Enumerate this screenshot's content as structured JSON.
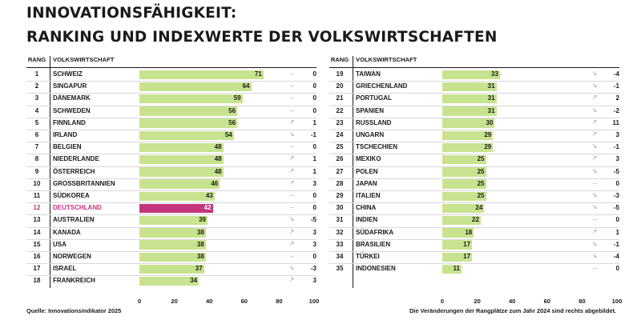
{
  "title_line1": "INNOVATIONSFÄHIGKEIT:",
  "title_line2": "RANKING UND INDEXWERTE DER VOLKSWIRTSCHAFTEN",
  "headers": {
    "rank": "RANG",
    "country": "VOLKSWIRTSCHAFT"
  },
  "source": "Quelle: Innovationsindikator 2025",
  "note": "Die Veränderungen der Rangplätze zum Jahr 2024 sind rechts abgebildet.",
  "colors": {
    "bar": "#c8e38f",
    "highlight": "#c4357e"
  },
  "chart_data": {
    "type": "bar",
    "orientation": "horizontal",
    "title": "INNOVATIONSFÄHIGKEIT: RANKING UND INDEXWERTE DER VOLKSWIRTSCHAFTEN",
    "xlim": [
      0,
      100
    ],
    "xticks": [
      "0",
      "20",
      "40",
      "60",
      "80",
      "100"
    ],
    "highlight": "DEUTSCHLAND",
    "rows": [
      {
        "rank": "1",
        "country": "SCHWEIZ",
        "value": 71,
        "change": "0"
      },
      {
        "rank": "2",
        "country": "SINGAPUR",
        "value": 64,
        "change": "0"
      },
      {
        "rank": "3",
        "country": "DÄNEMARK",
        "value": 59,
        "change": "0"
      },
      {
        "rank": "4",
        "country": "SCHWEDEN",
        "value": 56,
        "change": "0"
      },
      {
        "rank": "5",
        "country": "FINNLAND",
        "value": 56,
        "change": "1"
      },
      {
        "rank": "6",
        "country": "IRLAND",
        "value": 54,
        "change": "-1"
      },
      {
        "rank": "7",
        "country": "BELGIEN",
        "value": 48,
        "change": "0"
      },
      {
        "rank": "8",
        "country": "NIEDERLANDE",
        "value": 48,
        "change": "1"
      },
      {
        "rank": "9",
        "country": "ÖSTERREICH",
        "value": 48,
        "change": "1"
      },
      {
        "rank": "10",
        "country": "GROSSBRITANNIEN",
        "value": 46,
        "change": "3"
      },
      {
        "rank": "11",
        "country": "SÜDKOREA",
        "value": 43,
        "change": "0"
      },
      {
        "rank": "12",
        "country": "DEUTSCHLAND",
        "value": 42,
        "change": "0"
      },
      {
        "rank": "13",
        "country": "AUSTRALIEN",
        "value": 39,
        "change": "-5"
      },
      {
        "rank": "14",
        "country": "KANADA",
        "value": 38,
        "change": "3"
      },
      {
        "rank": "15",
        "country": "USA",
        "value": 38,
        "change": "3"
      },
      {
        "rank": "16",
        "country": "NORWEGEN",
        "value": 38,
        "change": "0"
      },
      {
        "rank": "17",
        "country": "ISRAEL",
        "value": 37,
        "change": "-3"
      },
      {
        "rank": "18",
        "country": "FRANKREICH",
        "value": 34,
        "change": "3"
      },
      {
        "rank": "19",
        "country": "TAIWAN",
        "value": 33,
        "change": "-4"
      },
      {
        "rank": "20",
        "country": "GRIECHENLAND",
        "value": 31,
        "change": "-1"
      },
      {
        "rank": "21",
        "country": "PORTUGAL",
        "value": 31,
        "change": "2"
      },
      {
        "rank": "22",
        "country": "SPANIEN",
        "value": 31,
        "change": "-2"
      },
      {
        "rank": "23",
        "country": "RUSSLAND",
        "value": 30,
        "change": "11"
      },
      {
        "rank": "24",
        "country": "UNGARN",
        "value": 29,
        "change": "3"
      },
      {
        "rank": "25",
        "country": "TSCHECHIEN",
        "value": 29,
        "change": "-1"
      },
      {
        "rank": "26",
        "country": "MEXIKO",
        "value": 25,
        "change": "3"
      },
      {
        "rank": "27",
        "country": "POLEN",
        "value": 25,
        "change": "-5"
      },
      {
        "rank": "28",
        "country": "JAPAN",
        "value": 25,
        "change": "0"
      },
      {
        "rank": "29",
        "country": "ITALIEN",
        "value": 25,
        "change": "-3"
      },
      {
        "rank": "30",
        "country": "CHINA",
        "value": 24,
        "change": "-5"
      },
      {
        "rank": "31",
        "country": "INDIEN",
        "value": 22,
        "change": "0"
      },
      {
        "rank": "32",
        "country": "SÜDAFRIKA",
        "value": 18,
        "change": "1"
      },
      {
        "rank": "33",
        "country": "BRASILIEN",
        "value": 17,
        "change": "-1"
      },
      {
        "rank": "34",
        "country": "TÜRKEI",
        "value": 17,
        "change": "-4"
      },
      {
        "rank": "35",
        "country": "INDONESIEN",
        "value": 11,
        "change": "0"
      }
    ]
  }
}
